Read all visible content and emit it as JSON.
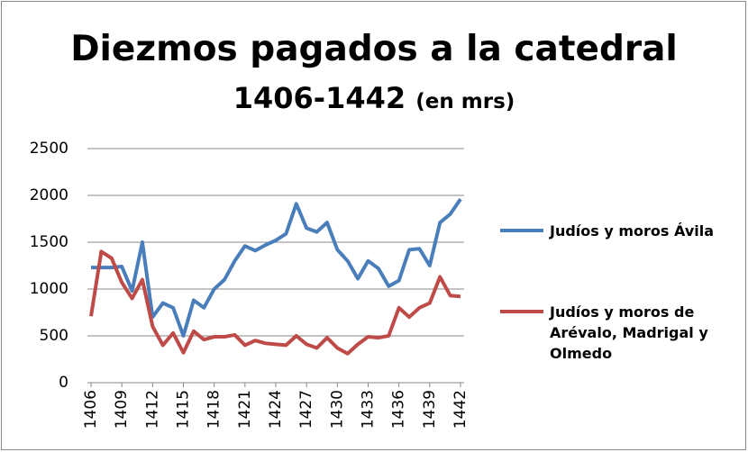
{
  "chart_data": {
    "type": "line",
    "title": "Diezmos pagados a la catedral",
    "subtitle": "1406-1442",
    "subtitle_note": "(en mrs)",
    "x": [
      1406,
      1407,
      1408,
      1409,
      1410,
      1411,
      1412,
      1413,
      1414,
      1415,
      1416,
      1417,
      1418,
      1419,
      1420,
      1421,
      1422,
      1423,
      1424,
      1425,
      1426,
      1427,
      1428,
      1429,
      1430,
      1431,
      1432,
      1433,
      1434,
      1435,
      1436,
      1437,
      1438,
      1439,
      1440,
      1441,
      1442
    ],
    "xlim": [
      1406,
      1442
    ],
    "xticks": [
      1406,
      1409,
      1412,
      1415,
      1418,
      1421,
      1424,
      1427,
      1430,
      1433,
      1436,
      1439,
      1442
    ],
    "ylim": [
      0,
      2500
    ],
    "yticks": [
      0,
      500,
      1000,
      1500,
      2000,
      2500
    ],
    "grid": true,
    "legend": "right",
    "series": [
      {
        "name": "Judíos y moros Ávila",
        "color": "#4a7ebb",
        "values": [
          1230,
          1230,
          1230,
          1240,
          980,
          1500,
          700,
          850,
          800,
          500,
          880,
          800,
          1000,
          1100,
          1300,
          1460,
          1410,
          1470,
          1520,
          1590,
          1910,
          1650,
          1610,
          1710,
          1420,
          1300,
          1110,
          1300,
          1220,
          1030,
          1090,
          1420,
          1430,
          1250,
          1710,
          1800,
          1960
        ]
      },
      {
        "name": "Judíos y moros de Arévalo, Madrigal y Olmedo",
        "color": "#be4b48",
        "values": [
          710,
          1400,
          1330,
          1070,
          900,
          1100,
          600,
          400,
          530,
          320,
          550,
          460,
          490,
          490,
          510,
          400,
          450,
          420,
          410,
          400,
          500,
          410,
          370,
          480,
          370,
          310,
          410,
          490,
          480,
          500,
          800,
          700,
          800,
          850,
          1130,
          930,
          920
        ]
      }
    ]
  }
}
